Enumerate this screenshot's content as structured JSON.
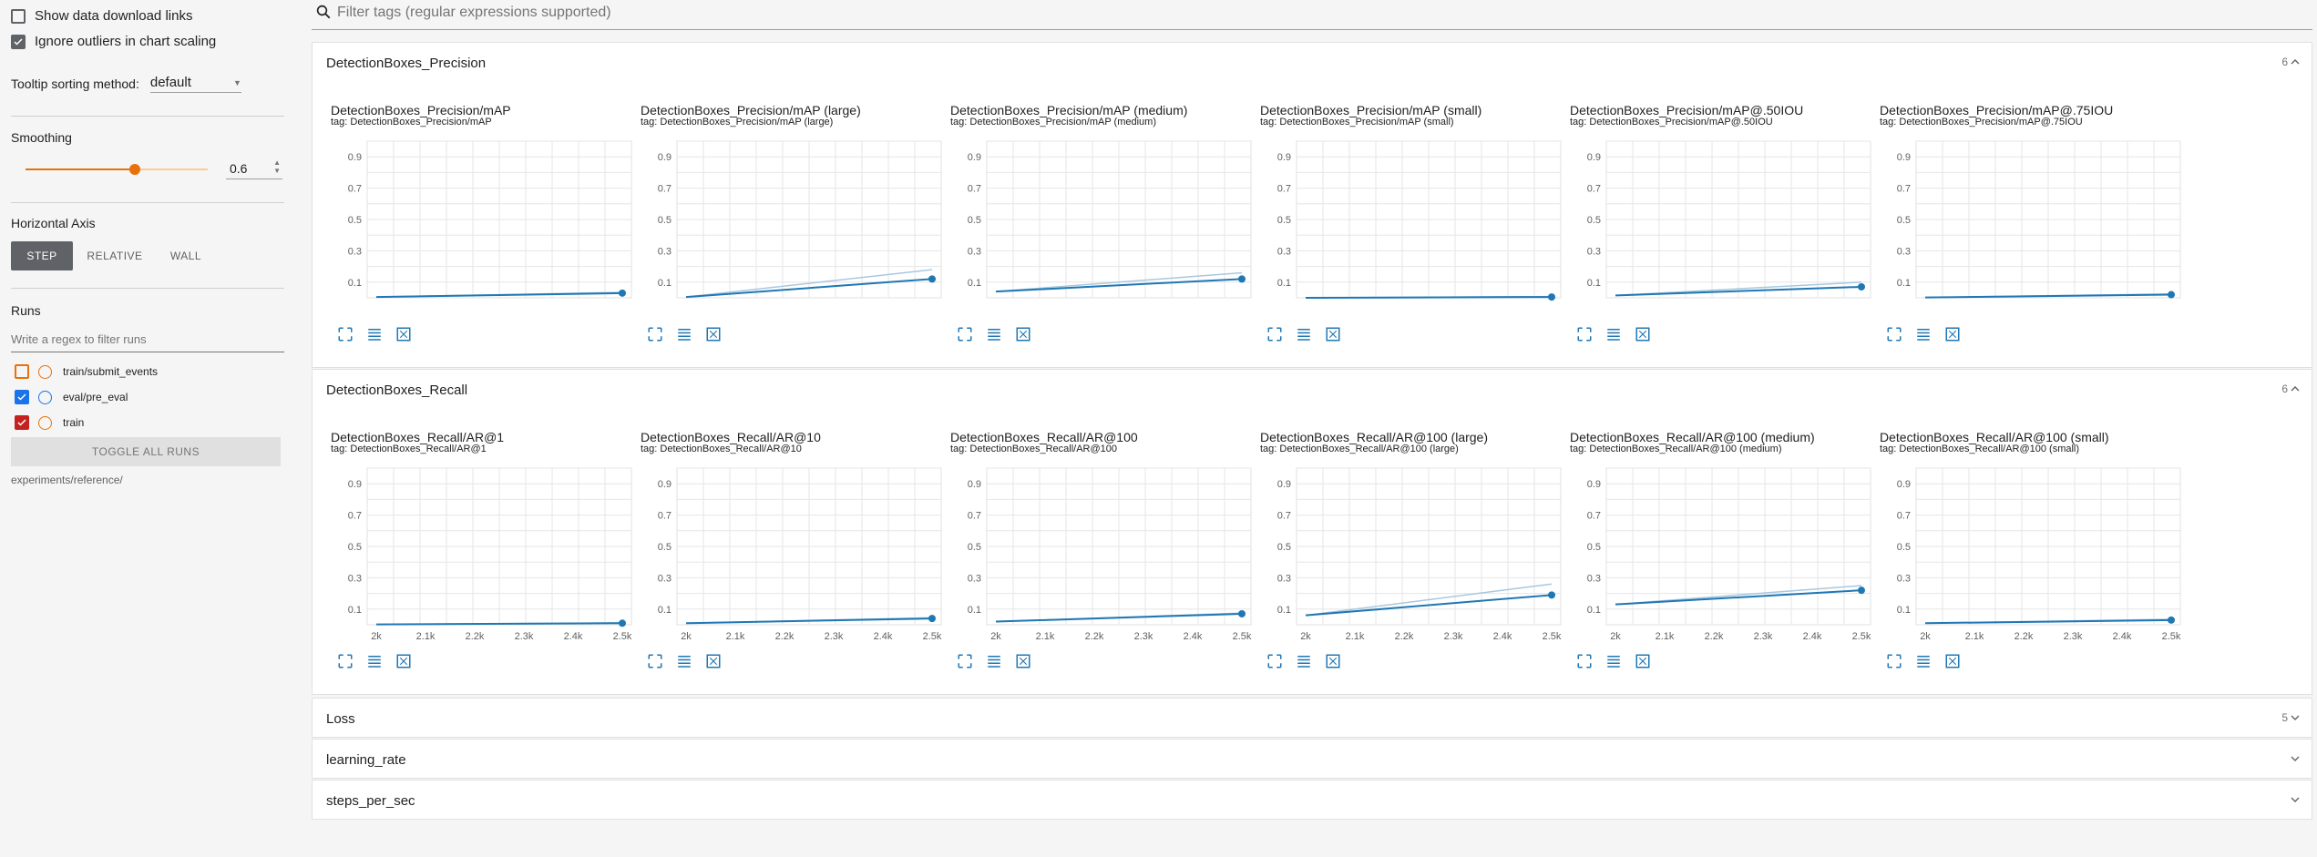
{
  "sidebar": {
    "show_download_label": "Show data download links",
    "ignore_outliers_label": "Ignore outliers in chart scaling",
    "tooltip_label": "Tooltip sorting method:",
    "tooltip_value": "default",
    "smoothing_title": "Smoothing",
    "smoothing_value": "0.6",
    "smoothing_fraction": 0.6,
    "horizontal_axis_title": "Horizontal Axis",
    "axis_buttons": [
      "STEP",
      "RELATIVE",
      "WALL"
    ],
    "runs_title": "Runs",
    "runs_filter_placeholder": "Write a regex to filter runs",
    "runs": [
      {
        "name": "train/submit_events",
        "checked": false,
        "color": "#e8710a"
      },
      {
        "name": "eval/pre_eval",
        "checked": true,
        "color": "#1a73e8"
      },
      {
        "name": "train",
        "checked": true,
        "color": "#c5221f"
      }
    ],
    "toggle_all": "TOGGLE ALL RUNS",
    "logdir": "experiments/reference/"
  },
  "filter": {
    "placeholder": "Filter tags (regular expressions supported)"
  },
  "sections": [
    {
      "title": "DetectionBoxes_Precision",
      "count": "6",
      "cards": [
        {
          "title": "DetectionBoxes_Precision/mAP",
          "tag": "tag: DetectionBoxes_Precision/mAP"
        },
        {
          "title": "DetectionBoxes_Precision/mAP (large)",
          "tag": "tag: DetectionBoxes_Precision/mAP (large)"
        },
        {
          "title": "DetectionBoxes_Precision/mAP (medium)",
          "tag": "tag: DetectionBoxes_Precision/mAP (medium)"
        },
        {
          "title": "DetectionBoxes_Precision/mAP (small)",
          "tag": "tag: DetectionBoxes_Precision/mAP (small)"
        },
        {
          "title": "DetectionBoxes_Precision/mAP@.50IOU",
          "tag": "tag: DetectionBoxes_Precision/mAP@.50IOU"
        },
        {
          "title": "DetectionBoxes_Precision/mAP@.75IOU",
          "tag": "tag: DetectionBoxes_Precision/mAP@.75IOU"
        }
      ]
    },
    {
      "title": "DetectionBoxes_Recall",
      "count": "6",
      "cards": [
        {
          "title": "DetectionBoxes_Recall/AR@1",
          "tag": "tag: DetectionBoxes_Recall/AR@1"
        },
        {
          "title": "DetectionBoxes_Recall/AR@10",
          "tag": "tag: DetectionBoxes_Recall/AR@10"
        },
        {
          "title": "DetectionBoxes_Recall/AR@100",
          "tag": "tag: DetectionBoxes_Recall/AR@100"
        },
        {
          "title": "DetectionBoxes_Recall/AR@100 (large)",
          "tag": "tag: DetectionBoxes_Recall/AR@100 (large)"
        },
        {
          "title": "DetectionBoxes_Recall/AR@100 (medium)",
          "tag": "tag: DetectionBoxes_Recall/AR@100 (medium)"
        },
        {
          "title": "DetectionBoxes_Recall/AR@100 (small)",
          "tag": "tag: DetectionBoxes_Recall/AR@100 (small)"
        }
      ]
    },
    {
      "title": "Loss",
      "count": "5"
    },
    {
      "title": "learning_rate",
      "count": ""
    },
    {
      "title": "steps_per_sec",
      "count": ""
    }
  ],
  "chart_data": [
    {
      "type": "line",
      "title": "DetectionBoxes_Precision/mAP",
      "x": [
        2000,
        2500
      ],
      "y": [
        0.005,
        0.03
      ],
      "y_raw": [
        0.005,
        0.035
      ],
      "y_ticks": [
        "0.1",
        "0.3",
        "0.5",
        "0.7",
        "0.9"
      ],
      "x_ticks": [],
      "ylim": [
        0,
        1
      ]
    },
    {
      "type": "line",
      "title": "DetectionBoxes_Precision/mAP (large)",
      "x": [
        2000,
        2500
      ],
      "y": [
        0.005,
        0.12
      ],
      "y_raw": [
        0.005,
        0.18
      ],
      "y_ticks": [
        "0.1",
        "0.3",
        "0.5",
        "0.7",
        "0.9"
      ],
      "x_ticks": [],
      "ylim": [
        0,
        1
      ]
    },
    {
      "type": "line",
      "title": "DetectionBoxes_Precision/mAP (medium)",
      "x": [
        2000,
        2500
      ],
      "y": [
        0.04,
        0.12
      ],
      "y_raw": [
        0.04,
        0.16
      ],
      "y_ticks": [
        "0.1",
        "0.3",
        "0.5",
        "0.7",
        "0.9"
      ],
      "x_ticks": [],
      "ylim": [
        0,
        1
      ]
    },
    {
      "type": "line",
      "title": "DetectionBoxes_Precision/mAP (small)",
      "x": [
        2000,
        2500
      ],
      "y": [
        0.0,
        0.005
      ],
      "y_raw": [
        0.0,
        0.008
      ],
      "y_ticks": [
        "0.1",
        "0.3",
        "0.5",
        "0.7",
        "0.9"
      ],
      "x_ticks": [],
      "ylim": [
        0,
        1
      ]
    },
    {
      "type": "line",
      "title": "DetectionBoxes_Precision/mAP@.50IOU",
      "x": [
        2000,
        2500
      ],
      "y": [
        0.015,
        0.07
      ],
      "y_raw": [
        0.015,
        0.1
      ],
      "y_ticks": [
        "0.1",
        "0.3",
        "0.5",
        "0.7",
        "0.9"
      ],
      "x_ticks": [],
      "ylim": [
        0,
        1
      ]
    },
    {
      "type": "line",
      "title": "DetectionBoxes_Precision/mAP@.75IOU",
      "x": [
        2000,
        2500
      ],
      "y": [
        0.002,
        0.02
      ],
      "y_raw": [
        0.002,
        0.025
      ],
      "y_ticks": [
        "0.1",
        "0.3",
        "0.5",
        "0.7",
        "0.9"
      ],
      "x_ticks": [],
      "ylim": [
        0,
        1
      ]
    },
    {
      "type": "line",
      "title": "DetectionBoxes_Recall/AR@1",
      "x": [
        2000,
        2500
      ],
      "y": [
        0.002,
        0.01
      ],
      "y_raw": [
        0.002,
        0.012
      ],
      "y_ticks": [
        "0.1",
        "0.3",
        "0.5",
        "0.7",
        "0.9"
      ],
      "x_ticks": [
        "2k",
        "2.1k",
        "2.2k",
        "2.3k",
        "2.4k",
        "2.5k"
      ],
      "ylim": [
        0,
        1
      ]
    },
    {
      "type": "line",
      "title": "DetectionBoxes_Recall/AR@10",
      "x": [
        2000,
        2500
      ],
      "y": [
        0.01,
        0.04
      ],
      "y_raw": [
        0.01,
        0.045
      ],
      "y_ticks": [
        "0.1",
        "0.3",
        "0.5",
        "0.7",
        "0.9"
      ],
      "x_ticks": [
        "2k",
        "2.1k",
        "2.2k",
        "2.3k",
        "2.4k",
        "2.5k"
      ],
      "ylim": [
        0,
        1
      ]
    },
    {
      "type": "line",
      "title": "DetectionBoxes_Recall/AR@100",
      "x": [
        2000,
        2500
      ],
      "y": [
        0.02,
        0.07
      ],
      "y_raw": [
        0.02,
        0.075
      ],
      "y_ticks": [
        "0.1",
        "0.3",
        "0.5",
        "0.7",
        "0.9"
      ],
      "x_ticks": [
        "2k",
        "2.1k",
        "2.2k",
        "2.3k",
        "2.4k",
        "2.5k"
      ],
      "ylim": [
        0,
        1
      ]
    },
    {
      "type": "line",
      "title": "DetectionBoxes_Recall/AR@100 (large)",
      "x": [
        2000,
        2500
      ],
      "y": [
        0.06,
        0.19
      ],
      "y_raw": [
        0.06,
        0.26
      ],
      "y_ticks": [
        "0.1",
        "0.3",
        "0.5",
        "0.7",
        "0.9"
      ],
      "x_ticks": [
        "2k",
        "2.1k",
        "2.2k",
        "2.3k",
        "2.4k",
        "2.5k"
      ],
      "ylim": [
        0,
        1
      ]
    },
    {
      "type": "line",
      "title": "DetectionBoxes_Recall/AR@100 (medium)",
      "x": [
        2000,
        2500
      ],
      "y": [
        0.13,
        0.22
      ],
      "y_raw": [
        0.13,
        0.25
      ],
      "y_ticks": [
        "0.1",
        "0.3",
        "0.5",
        "0.7",
        "0.9"
      ],
      "x_ticks": [
        "2k",
        "2.1k",
        "2.2k",
        "2.3k",
        "2.4k",
        "2.5k"
      ],
      "ylim": [
        0,
        1
      ]
    },
    {
      "type": "line",
      "title": "DetectionBoxes_Recall/AR@100 (small)",
      "x": [
        2000,
        2500
      ],
      "y": [
        0.01,
        0.03
      ],
      "y_raw": [
        0.01,
        0.035
      ],
      "y_ticks": [
        "0.1",
        "0.3",
        "0.5",
        "0.7",
        "0.9"
      ],
      "x_ticks": [
        "2k",
        "2.1k",
        "2.2k",
        "2.3k",
        "2.4k",
        "2.5k"
      ],
      "ylim": [
        0,
        1
      ]
    }
  ],
  "colors": {
    "accent": "#1f77b4",
    "raw": "#a8c8e0",
    "smoothing_orange": "#e8710a",
    "eval_blue": "#1a73e8",
    "train_red": "#c5221f"
  }
}
